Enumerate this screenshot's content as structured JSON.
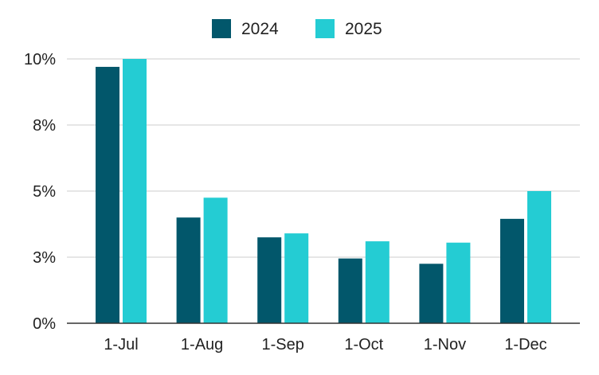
{
  "chart_data": {
    "type": "bar",
    "title": "",
    "xlabel": "",
    "ylabel": "",
    "categories": [
      "1-Jul",
      "1-Aug",
      "1-Sep",
      "1-Oct",
      "1-Nov",
      "1-Dec"
    ],
    "series": [
      {
        "name": "2024",
        "values": [
          9.7,
          4.0,
          3.25,
          2.45,
          2.25,
          3.95
        ]
      },
      {
        "name": "2025",
        "values": [
          10.0,
          4.75,
          3.4,
          3.1,
          3.05,
          5.0
        ]
      }
    ],
    "y_ticks": [
      {
        "value": 0,
        "label": "0%"
      },
      {
        "value": 2.5,
        "label": "3%"
      },
      {
        "value": 5,
        "label": "5%"
      },
      {
        "value": 7.5,
        "label": "8%"
      },
      {
        "value": 10,
        "label": "10%"
      }
    ],
    "ylim": [
      0,
      10
    ],
    "grid": true,
    "legend_position": "top-center",
    "colors": {
      "series": [
        "#02576b",
        "#24ccd3"
      ],
      "grid": "#cccccc",
      "axis": "#333333",
      "text": "#222222"
    }
  }
}
